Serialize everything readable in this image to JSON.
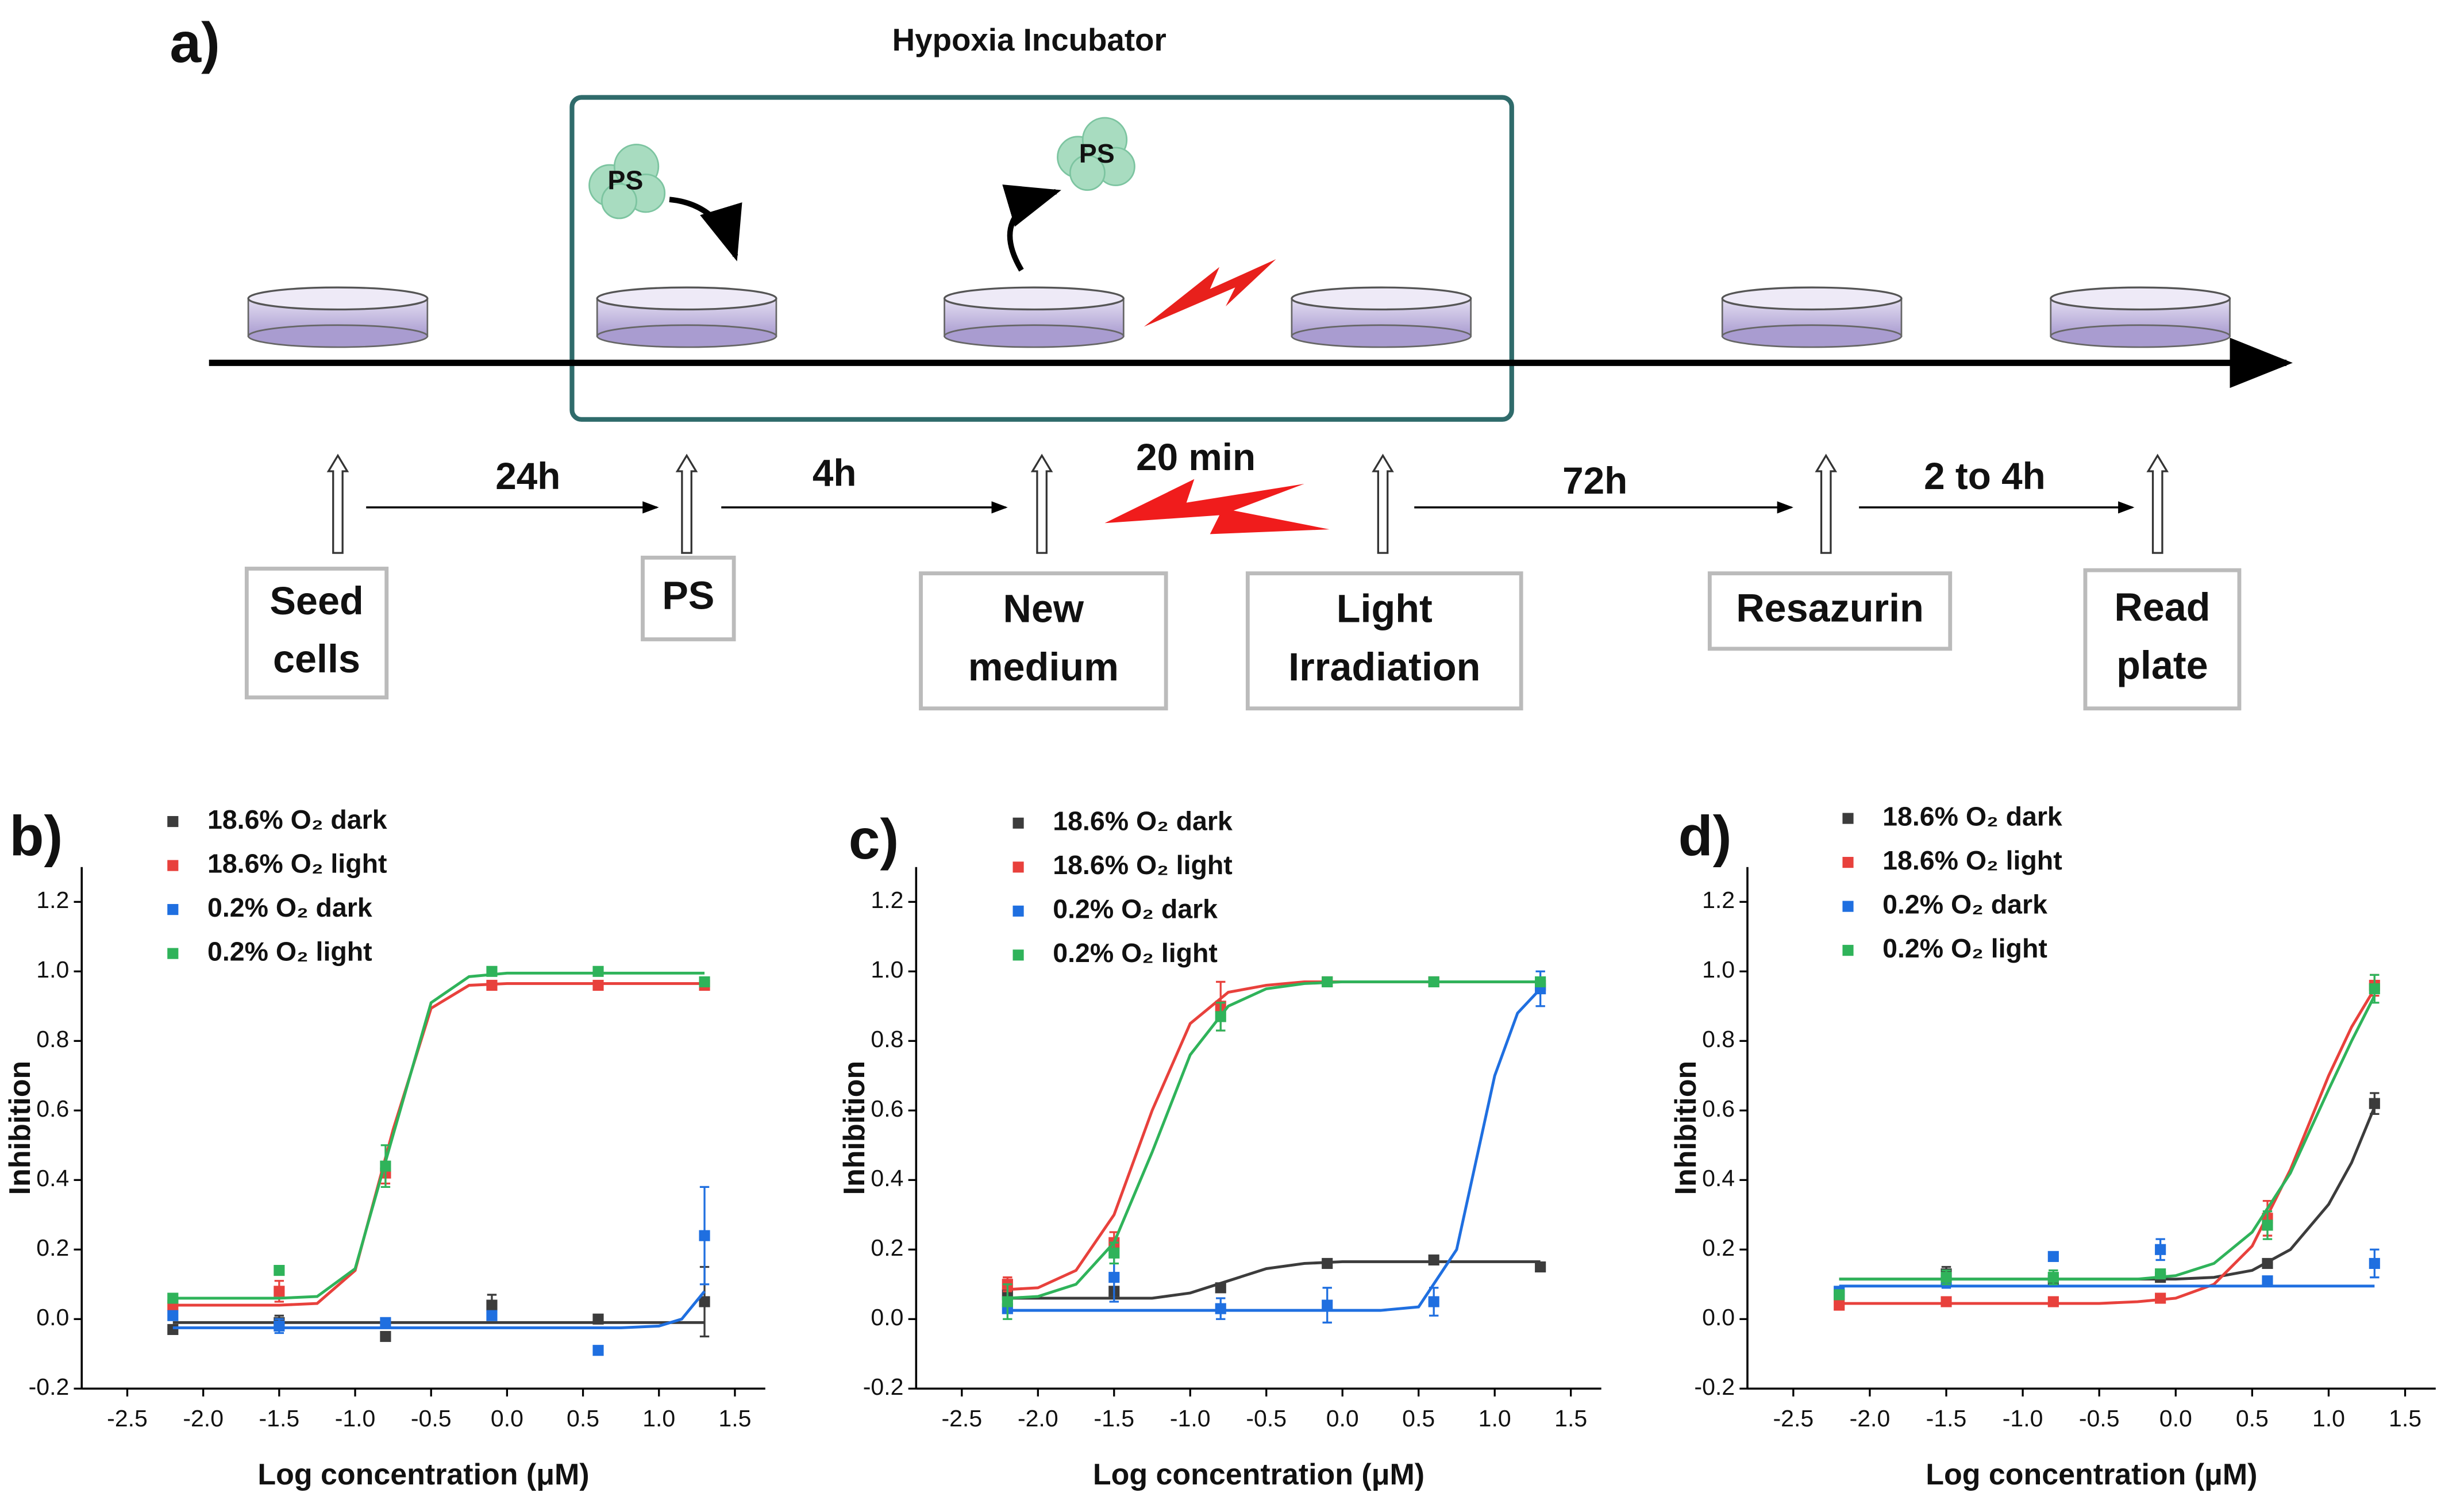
{
  "diagram": {
    "label": "a)",
    "incubator": "Hypoxia Incubator",
    "clouds": [
      "PS",
      "PS"
    ],
    "intervals": [
      "24h",
      "4h",
      "20 min",
      "72h",
      "2 to 4h"
    ],
    "steps": [
      [
        "Seed",
        "cells"
      ],
      [
        "PS"
      ],
      [
        "New",
        "medium"
      ],
      [
        "Light",
        "Irradiation"
      ],
      [
        "Resazurin"
      ],
      [
        "Read",
        "plate"
      ]
    ]
  },
  "chart_data": [
    {
      "type": "scatter",
      "panel": "b)",
      "x_label": "Log concentration (μM)",
      "y_label": "Inhibition",
      "x": [
        -2.2,
        -1.5,
        -0.8,
        -0.1,
        0.6,
        1.3
      ],
      "fit_x": [
        -2.2,
        -2.0,
        -1.75,
        -1.5,
        -1.25,
        -1.0,
        -0.75,
        -0.5,
        -0.25,
        0,
        0.25,
        0.5,
        0.75,
        1.0,
        1.15,
        1.3
      ],
      "xlim": [
        -2.8,
        1.7
      ],
      "ylim": [
        -0.2,
        1.3
      ],
      "xticks": [
        -2.5,
        {
          "value": -2,
          "label": "-2.0"
        },
        -1.5,
        {
          "value": -1,
          "label": "-1.0"
        },
        -0.5,
        {
          "value": 0,
          "label": "0.0"
        },
        0.5,
        {
          "value": 1,
          "label": "1.0"
        },
        1.5
      ],
      "yticks": [
        -0.2,
        {
          "value": 0,
          "label": "0.0"
        },
        0.2,
        0.4,
        0.6,
        0.8,
        {
          "value": 1,
          "label": "1.0"
        },
        1.2
      ],
      "series": [
        {
          "name": "18.6% O₂ dark",
          "color": "#3c3c3c",
          "values": [
            -0.03,
            -0.01,
            -0.05,
            0.04,
            0.0,
            0.05
          ],
          "errors": [
            0.01,
            0.02,
            0.01,
            0.03,
            0.01,
            0.1
          ],
          "fit": [
            -0.01,
            -0.01,
            -0.01,
            -0.01,
            -0.01,
            -0.01,
            -0.01,
            -0.01,
            -0.01,
            -0.01,
            -0.01,
            -0.01,
            -0.01,
            -0.01,
            -0.01,
            -0.01
          ]
        },
        {
          "name": "18.6% O₂ light",
          "color": "#e8413c",
          "values": [
            0.04,
            0.08,
            0.42,
            0.96,
            0.96,
            0.96
          ],
          "errors": [
            0.01,
            0.03,
            0.03,
            0.01,
            0.01,
            0.01
          ],
          "fit": [
            0.04,
            0.04,
            0.04,
            0.04,
            0.045,
            0.14,
            0.545,
            0.894,
            0.96,
            0.965,
            0.965,
            0.965,
            0.965,
            0.965,
            0.965,
            0.965
          ]
        },
        {
          "name": "0.2% O₂ dark",
          "color": "#1f6fe0",
          "values": [
            0.01,
            -0.02,
            -0.01,
            0.01,
            -0.09,
            0.24
          ],
          "errors": [
            0.01,
            0.02,
            0.01,
            0.01,
            0.01,
            0.14
          ],
          "fit": [
            -0.025,
            -0.025,
            -0.025,
            -0.025,
            -0.025,
            -0.025,
            -0.025,
            -0.025,
            -0.025,
            -0.025,
            -0.025,
            -0.025,
            -0.025,
            -0.02,
            0.0,
            0.08
          ]
        },
        {
          "name": "0.2% O₂ light",
          "color": "#2fb35a",
          "values": [
            0.06,
            0.14,
            0.44,
            1.0,
            1.0,
            0.97
          ],
          "errors": [
            0.01,
            0.01,
            0.06,
            0.01,
            0.01,
            0.01
          ],
          "fit": [
            0.06,
            0.06,
            0.06,
            0.06,
            0.065,
            0.145,
            0.53,
            0.91,
            0.985,
            0.995,
            0.995,
            0.995,
            0.995,
            0.995,
            0.995,
            0.995
          ]
        }
      ]
    },
    {
      "type": "scatter",
      "panel": "c)",
      "x_label": "Log concentration (μM)",
      "y_label": "Inhibition",
      "x": [
        -2.2,
        -1.5,
        -0.8,
        -0.1,
        0.6,
        1.3
      ],
      "fit_x": [
        -2.2,
        -2.0,
        -1.75,
        -1.5,
        -1.25,
        -1.0,
        -0.75,
        -0.5,
        -0.25,
        0,
        0.25,
        0.5,
        0.75,
        1.0,
        1.15,
        1.3
      ],
      "xlim": [
        -2.8,
        1.7
      ],
      "ylim": [
        -0.2,
        1.3
      ],
      "xticks": [
        -2.5,
        {
          "value": -2,
          "label": "-2.0"
        },
        -1.5,
        {
          "value": -1,
          "label": "-1.0"
        },
        -0.5,
        {
          "value": 0,
          "label": "0.0"
        },
        0.5,
        {
          "value": 1,
          "label": "1.0"
        },
        1.5
      ],
      "yticks": [
        -0.2,
        {
          "value": 0,
          "label": "0.0"
        },
        0.2,
        0.4,
        0.6,
        0.8,
        {
          "value": 1,
          "label": "1.0"
        },
        1.2
      ],
      "series": [
        {
          "name": "18.6% O₂ dark",
          "color": "#3c3c3c",
          "values": [
            0.07,
            0.08,
            0.09,
            0.16,
            0.17,
            0.15
          ],
          "errors": [
            0.01,
            0.01,
            0.01,
            0.01,
            0.01,
            0.01
          ],
          "fit": [
            0.06,
            0.06,
            0.06,
            0.06,
            0.06,
            0.075,
            0.11,
            0.145,
            0.16,
            0.165,
            0.165,
            0.165,
            0.165,
            0.165,
            0.165,
            0.165
          ]
        },
        {
          "name": "18.6% O₂ light",
          "color": "#e8413c",
          "values": [
            0.1,
            0.22,
            0.9,
            0.97,
            0.97,
            0.96
          ],
          "errors": [
            0.02,
            0.03,
            0.07,
            0.01,
            0.01,
            0.01
          ],
          "fit": [
            0.085,
            0.09,
            0.14,
            0.3,
            0.6,
            0.85,
            0.94,
            0.96,
            0.97,
            0.97,
            0.97,
            0.97,
            0.97,
            0.97,
            0.97,
            0.97
          ]
        },
        {
          "name": "0.2% O₂ dark",
          "color": "#1f6fe0",
          "values": [
            0.03,
            0.12,
            0.03,
            0.04,
            0.05,
            0.95
          ],
          "errors": [
            0.01,
            0.07,
            0.03,
            0.05,
            0.04,
            0.05
          ],
          "fit": [
            0.025,
            0.025,
            0.025,
            0.025,
            0.025,
            0.025,
            0.025,
            0.025,
            0.025,
            0.025,
            0.025,
            0.035,
            0.2,
            0.7,
            0.88,
            0.95
          ]
        },
        {
          "name": "0.2% O₂ light",
          "color": "#2fb35a",
          "values": [
            0.05,
            0.19,
            0.87,
            0.97,
            0.97,
            0.97
          ],
          "errors": [
            0.05,
            0.03,
            0.04,
            0.01,
            0.01,
            0.01
          ],
          "fit": [
            0.06,
            0.065,
            0.1,
            0.22,
            0.48,
            0.76,
            0.9,
            0.95,
            0.965,
            0.97,
            0.97,
            0.97,
            0.97,
            0.97,
            0.97,
            0.97
          ]
        }
      ]
    },
    {
      "type": "scatter",
      "panel": "d)",
      "x_label": "Log concentration (μM)",
      "y_label": "Inhibition",
      "x": [
        -2.2,
        -1.5,
        -0.8,
        -0.1,
        0.6,
        1.3
      ],
      "fit_x": [
        -2.2,
        -2.0,
        -1.75,
        -1.5,
        -1.25,
        -1.0,
        -0.75,
        -0.5,
        -0.25,
        0,
        0.25,
        0.5,
        0.75,
        1.0,
        1.15,
        1.3
      ],
      "xlim": [
        -2.8,
        1.7
      ],
      "ylim": [
        -0.2,
        1.3
      ],
      "xticks": [
        -2.5,
        {
          "value": -2,
          "label": "-2.0"
        },
        -1.5,
        {
          "value": -1,
          "label": "-1.0"
        },
        -0.5,
        {
          "value": 0,
          "label": "0.0"
        },
        0.5,
        {
          "value": 1,
          "label": "1.0"
        },
        1.5
      ],
      "yticks": [
        -0.2,
        {
          "value": 0,
          "label": "0.0"
        },
        0.2,
        0.4,
        0.6,
        0.8,
        {
          "value": 1,
          "label": "1.0"
        },
        1.2
      ],
      "series": [
        {
          "name": "18.6% O₂ dark",
          "color": "#3c3c3c",
          "values": [
            0.07,
            0.13,
            0.11,
            0.12,
            0.16,
            0.62
          ],
          "errors": [
            0.01,
            0.02,
            0.01,
            0.01,
            0.01,
            0.03
          ],
          "fit": [
            0.115,
            0.115,
            0.115,
            0.115,
            0.115,
            0.115,
            0.115,
            0.115,
            0.115,
            0.115,
            0.12,
            0.14,
            0.2,
            0.33,
            0.45,
            0.61
          ]
        },
        {
          "name": "18.6% O₂ light",
          "color": "#e8413c",
          "values": [
            0.04,
            0.05,
            0.05,
            0.06,
            0.29,
            0.96
          ],
          "errors": [
            0.01,
            0.01,
            0.01,
            0.01,
            0.05,
            0.03
          ],
          "fit": [
            0.045,
            0.045,
            0.045,
            0.045,
            0.045,
            0.045,
            0.045,
            0.045,
            0.05,
            0.06,
            0.1,
            0.21,
            0.43,
            0.7,
            0.84,
            0.95
          ]
        },
        {
          "name": "0.2% O₂ dark",
          "color": "#1f6fe0",
          "values": [
            0.08,
            0.11,
            0.18,
            0.2,
            0.11,
            0.16
          ],
          "errors": [
            0.01,
            0.02,
            0.01,
            0.03,
            0.01,
            0.04
          ],
          "fit": [
            0.095,
            0.095,
            0.095,
            0.095,
            0.095,
            0.095,
            0.095,
            0.095,
            0.095,
            0.095,
            0.095,
            0.095,
            0.095,
            0.095,
            0.095,
            0.095
          ]
        },
        {
          "name": "0.2% O₂ light",
          "color": "#2fb35a",
          "values": [
            0.07,
            0.12,
            0.12,
            0.13,
            0.27,
            0.95
          ],
          "errors": [
            0.01,
            0.02,
            0.02,
            0.01,
            0.04,
            0.04
          ],
          "fit": [
            0.115,
            0.115,
            0.115,
            0.115,
            0.115,
            0.115,
            0.115,
            0.115,
            0.115,
            0.125,
            0.16,
            0.25,
            0.42,
            0.66,
            0.8,
            0.93
          ]
        }
      ]
    }
  ]
}
